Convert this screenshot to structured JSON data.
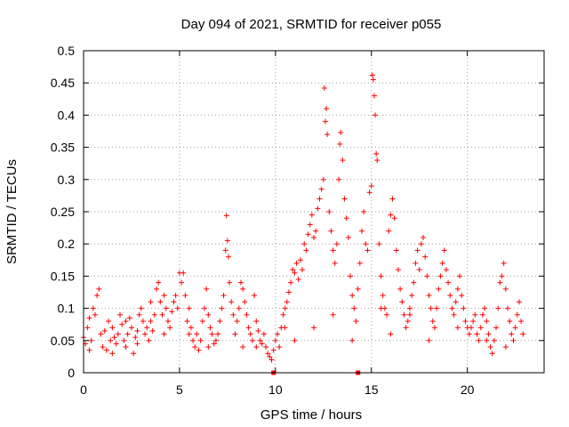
{
  "chart_data": {
    "type": "scatter",
    "title": "Day 094 of 2021, SRMTID for receiver p055",
    "xlabel": "GPS time / hours",
    "ylabel": "SRMTID / TECUs",
    "xlim": [
      0,
      24
    ],
    "ylim": [
      0,
      0.5
    ],
    "xticks": [
      0,
      5,
      10,
      15,
      20
    ],
    "xtick_labels": [
      "0",
      "5",
      "10",
      "15",
      "20"
    ],
    "yticks": [
      0,
      0.05,
      0.1,
      0.15,
      0.2,
      0.25,
      0.3,
      0.35,
      0.4,
      0.45,
      0.5
    ],
    "ytick_labels": [
      "0",
      "0.05",
      "0.1",
      "0.15",
      "0.2",
      "0.25",
      "0.3",
      "0.35",
      "0.4",
      "0.45",
      "0.5"
    ],
    "grid": true,
    "marker": "+",
    "color": "#ff0000",
    "series": [
      {
        "name": "SRMTID",
        "points": [
          [
            0.0,
            0.055
          ],
          [
            0.1,
            0.045
          ],
          [
            0.2,
            0.07
          ],
          [
            0.3,
            0.085
          ],
          [
            0.4,
            0.05
          ],
          [
            0.5,
            0.1
          ],
          [
            0.6,
            0.09
          ],
          [
            0.7,
            0.12
          ],
          [
            0.8,
            0.13
          ],
          [
            0.9,
            0.06
          ],
          [
            1.0,
            0.04
          ],
          [
            1.1,
            0.065
          ],
          [
            1.2,
            0.035
          ],
          [
            1.3,
            0.08
          ],
          [
            1.4,
            0.05
          ],
          [
            1.5,
            0.07
          ],
          [
            1.6,
            0.055
          ],
          [
            1.7,
            0.045
          ],
          [
            1.8,
            0.06
          ],
          [
            1.9,
            0.09
          ],
          [
            2.0,
            0.075
          ],
          [
            2.1,
            0.05
          ],
          [
            2.2,
            0.04
          ],
          [
            2.3,
            0.06
          ],
          [
            2.4,
            0.085
          ],
          [
            2.5,
            0.07
          ],
          [
            2.6,
            0.03
          ],
          [
            2.7,
            0.055
          ],
          [
            2.8,
            0.065
          ],
          [
            2.9,
            0.09
          ],
          [
            3.0,
            0.1
          ],
          [
            3.1,
            0.08
          ],
          [
            3.2,
            0.06
          ],
          [
            3.3,
            0.07
          ],
          [
            3.4,
            0.05
          ],
          [
            3.5,
            0.08
          ],
          [
            3.6,
            0.065
          ],
          [
            3.7,
            0.09
          ],
          [
            3.8,
            0.13
          ],
          [
            3.9,
            0.14
          ],
          [
            4.0,
            0.11
          ],
          [
            4.1,
            0.09
          ],
          [
            4.2,
            0.12
          ],
          [
            4.3,
            0.1
          ],
          [
            4.4,
            0.08
          ],
          [
            4.5,
            0.07
          ],
          [
            4.6,
            0.095
          ],
          [
            4.7,
            0.11
          ],
          [
            4.8,
            0.12
          ],
          [
            4.9,
            0.1
          ],
          [
            5.0,
            0.155
          ],
          [
            5.1,
            0.14
          ],
          [
            5.2,
            0.155
          ],
          [
            5.3,
            0.12
          ],
          [
            5.4,
            0.08
          ],
          [
            5.5,
            0.06
          ],
          [
            5.6,
            0.07
          ],
          [
            5.7,
            0.05
          ],
          [
            5.8,
            0.04
          ],
          [
            5.9,
            0.06
          ],
          [
            6.0,
            0.035
          ],
          [
            6.1,
            0.05
          ],
          [
            6.2,
            0.08
          ],
          [
            6.3,
            0.1
          ],
          [
            6.4,
            0.13
          ],
          [
            6.5,
            0.09
          ],
          [
            6.6,
            0.07
          ],
          [
            6.7,
            0.06
          ],
          [
            6.8,
            0.045
          ],
          [
            6.9,
            0.05
          ],
          [
            7.0,
            0.06
          ],
          [
            7.1,
            0.08
          ],
          [
            7.2,
            0.1
          ],
          [
            7.3,
            0.12
          ],
          [
            7.4,
            0.19
          ],
          [
            7.5,
            0.205
          ],
          [
            7.45,
            0.244
          ],
          [
            7.55,
            0.18
          ],
          [
            7.6,
            0.14
          ],
          [
            7.7,
            0.11
          ],
          [
            7.8,
            0.09
          ],
          [
            7.9,
            0.06
          ],
          [
            8.0,
            0.08
          ],
          [
            8.1,
            0.1
          ],
          [
            8.2,
            0.14
          ],
          [
            8.3,
            0.13
          ],
          [
            8.4,
            0.11
          ],
          [
            8.5,
            0.09
          ],
          [
            8.6,
            0.07
          ],
          [
            8.7,
            0.06
          ],
          [
            8.8,
            0.05
          ],
          [
            8.9,
            0.12
          ],
          [
            9.0,
            0.08
          ],
          [
            9.1,
            0.065
          ],
          [
            9.2,
            0.05
          ],
          [
            9.3,
            0.045
          ],
          [
            9.4,
            0.06
          ],
          [
            9.5,
            0.04
          ],
          [
            9.6,
            0.03
          ],
          [
            9.7,
            0.025
          ],
          [
            9.8,
            0.02
          ],
          [
            9.9,
            0.035
          ],
          [
            10.0,
            0.05
          ],
          [
            10.1,
            0.06
          ],
          [
            10.2,
            0.04
          ],
          [
            10.3,
            0.07
          ],
          [
            10.4,
            0.09
          ],
          [
            10.5,
            0.1
          ],
          [
            10.6,
            0.11
          ],
          [
            10.7,
            0.125
          ],
          [
            10.8,
            0.14
          ],
          [
            10.9,
            0.16
          ],
          [
            11.0,
            0.155
          ],
          [
            11.1,
            0.17
          ],
          [
            11.2,
            0.145
          ],
          [
            11.3,
            0.175
          ],
          [
            11.4,
            0.16
          ],
          [
            11.5,
            0.2
          ],
          [
            11.6,
            0.19
          ],
          [
            11.7,
            0.215
          ],
          [
            11.8,
            0.23
          ],
          [
            11.9,
            0.245
          ],
          [
            12.0,
            0.21
          ],
          [
            12.1,
            0.22
          ],
          [
            12.2,
            0.255
          ],
          [
            12.3,
            0.27
          ],
          [
            12.4,
            0.285
          ],
          [
            12.5,
            0.3
          ],
          [
            12.55,
            0.442
          ],
          [
            12.6,
            0.39
          ],
          [
            12.65,
            0.41
          ],
          [
            12.7,
            0.37
          ],
          [
            12.8,
            0.25
          ],
          [
            12.9,
            0.22
          ],
          [
            13.0,
            0.19
          ],
          [
            13.1,
            0.17
          ],
          [
            13.2,
            0.2
          ],
          [
            13.3,
            0.3
          ],
          [
            13.35,
            0.355
          ],
          [
            13.4,
            0.373
          ],
          [
            13.5,
            0.33
          ],
          [
            13.6,
            0.27
          ],
          [
            13.7,
            0.24
          ],
          [
            13.8,
            0.21
          ],
          [
            13.9,
            0.15
          ],
          [
            14.0,
            0.12
          ],
          [
            14.1,
            0.1
          ],
          [
            14.2,
            0.08
          ],
          [
            14.3,
            0.13
          ],
          [
            14.4,
            0.17
          ],
          [
            14.5,
            0.22
          ],
          [
            14.6,
            0.25
          ],
          [
            14.7,
            0.2
          ],
          [
            14.8,
            0.19
          ],
          [
            14.9,
            0.28
          ],
          [
            15.0,
            0.29
          ],
          [
            15.05,
            0.462
          ],
          [
            15.1,
            0.455
          ],
          [
            15.15,
            0.43
          ],
          [
            15.2,
            0.4
          ],
          [
            15.25,
            0.34
          ],
          [
            15.3,
            0.33
          ],
          [
            15.4,
            0.2
          ],
          [
            15.5,
            0.15
          ],
          [
            15.6,
            0.12
          ],
          [
            15.7,
            0.1
          ],
          [
            15.8,
            0.09
          ],
          [
            15.9,
            0.22
          ],
          [
            16.0,
            0.245
          ],
          [
            16.1,
            0.27
          ],
          [
            16.2,
            0.24
          ],
          [
            16.3,
            0.19
          ],
          [
            16.4,
            0.16
          ],
          [
            16.5,
            0.13
          ],
          [
            16.6,
            0.11
          ],
          [
            16.7,
            0.09
          ],
          [
            16.8,
            0.07
          ],
          [
            16.9,
            0.08
          ],
          [
            17.0,
            0.1
          ],
          [
            17.1,
            0.12
          ],
          [
            17.2,
            0.14
          ],
          [
            17.3,
            0.17
          ],
          [
            17.4,
            0.19
          ],
          [
            17.5,
            0.16
          ],
          [
            17.6,
            0.2
          ],
          [
            17.7,
            0.21
          ],
          [
            17.8,
            0.18
          ],
          [
            17.9,
            0.15
          ],
          [
            18.0,
            0.12
          ],
          [
            18.1,
            0.1
          ],
          [
            18.2,
            0.08
          ],
          [
            18.3,
            0.07
          ],
          [
            18.4,
            0.1
          ],
          [
            18.5,
            0.13
          ],
          [
            18.6,
            0.15
          ],
          [
            18.7,
            0.17
          ],
          [
            18.8,
            0.19
          ],
          [
            18.9,
            0.16
          ],
          [
            19.0,
            0.14
          ],
          [
            19.1,
            0.12
          ],
          [
            19.2,
            0.1
          ],
          [
            19.3,
            0.09
          ],
          [
            19.4,
            0.11
          ],
          [
            19.5,
            0.13
          ],
          [
            19.6,
            0.15
          ],
          [
            19.7,
            0.12
          ],
          [
            19.8,
            0.1
          ],
          [
            19.9,
            0.08
          ],
          [
            20.0,
            0.07
          ],
          [
            20.1,
            0.06
          ],
          [
            20.2,
            0.07
          ],
          [
            20.3,
            0.08
          ],
          [
            20.4,
            0.09
          ],
          [
            20.5,
            0.06
          ],
          [
            20.6,
            0.05
          ],
          [
            20.7,
            0.07
          ],
          [
            20.8,
            0.09
          ],
          [
            20.9,
            0.1
          ],
          [
            21.0,
            0.08
          ],
          [
            21.1,
            0.06
          ],
          [
            21.2,
            0.04
          ],
          [
            21.3,
            0.03
          ],
          [
            21.4,
            0.05
          ],
          [
            21.5,
            0.07
          ],
          [
            21.6,
            0.1
          ],
          [
            21.7,
            0.14
          ],
          [
            21.8,
            0.15
          ],
          [
            21.9,
            0.17
          ],
          [
            22.0,
            0.13
          ],
          [
            22.1,
            0.1
          ],
          [
            22.2,
            0.08
          ],
          [
            22.3,
            0.06
          ],
          [
            22.4,
            0.05
          ],
          [
            22.5,
            0.07
          ],
          [
            22.6,
            0.09
          ],
          [
            22.7,
            0.11
          ],
          [
            22.8,
            0.08
          ],
          [
            22.9,
            0.06
          ],
          [
            0.3,
            0.035
          ],
          [
            1.5,
            0.03
          ],
          [
            2.8,
            0.045
          ],
          [
            4.2,
            0.06
          ],
          [
            6.5,
            0.04
          ],
          [
            8.3,
            0.04
          ],
          [
            11.0,
            0.05
          ],
          [
            12.0,
            0.07
          ],
          [
            13.0,
            0.09
          ],
          [
            14.0,
            0.05
          ],
          [
            16.0,
            0.06
          ],
          [
            18.0,
            0.05
          ],
          [
            19.5,
            0.07
          ],
          [
            21.0,
            0.05
          ],
          [
            22.0,
            0.04
          ],
          [
            17.0,
            0.09
          ],
          [
            15.5,
            0.1
          ],
          [
            10.5,
            0.07
          ],
          [
            9.0,
            0.04
          ],
          [
            5.5,
            0.1
          ],
          [
            3.5,
            0.11
          ],
          [
            2.2,
            0.08
          ]
        ]
      }
    ],
    "overflow_markers": [
      {
        "x": 9.9
      },
      {
        "x": 14.3
      }
    ]
  }
}
